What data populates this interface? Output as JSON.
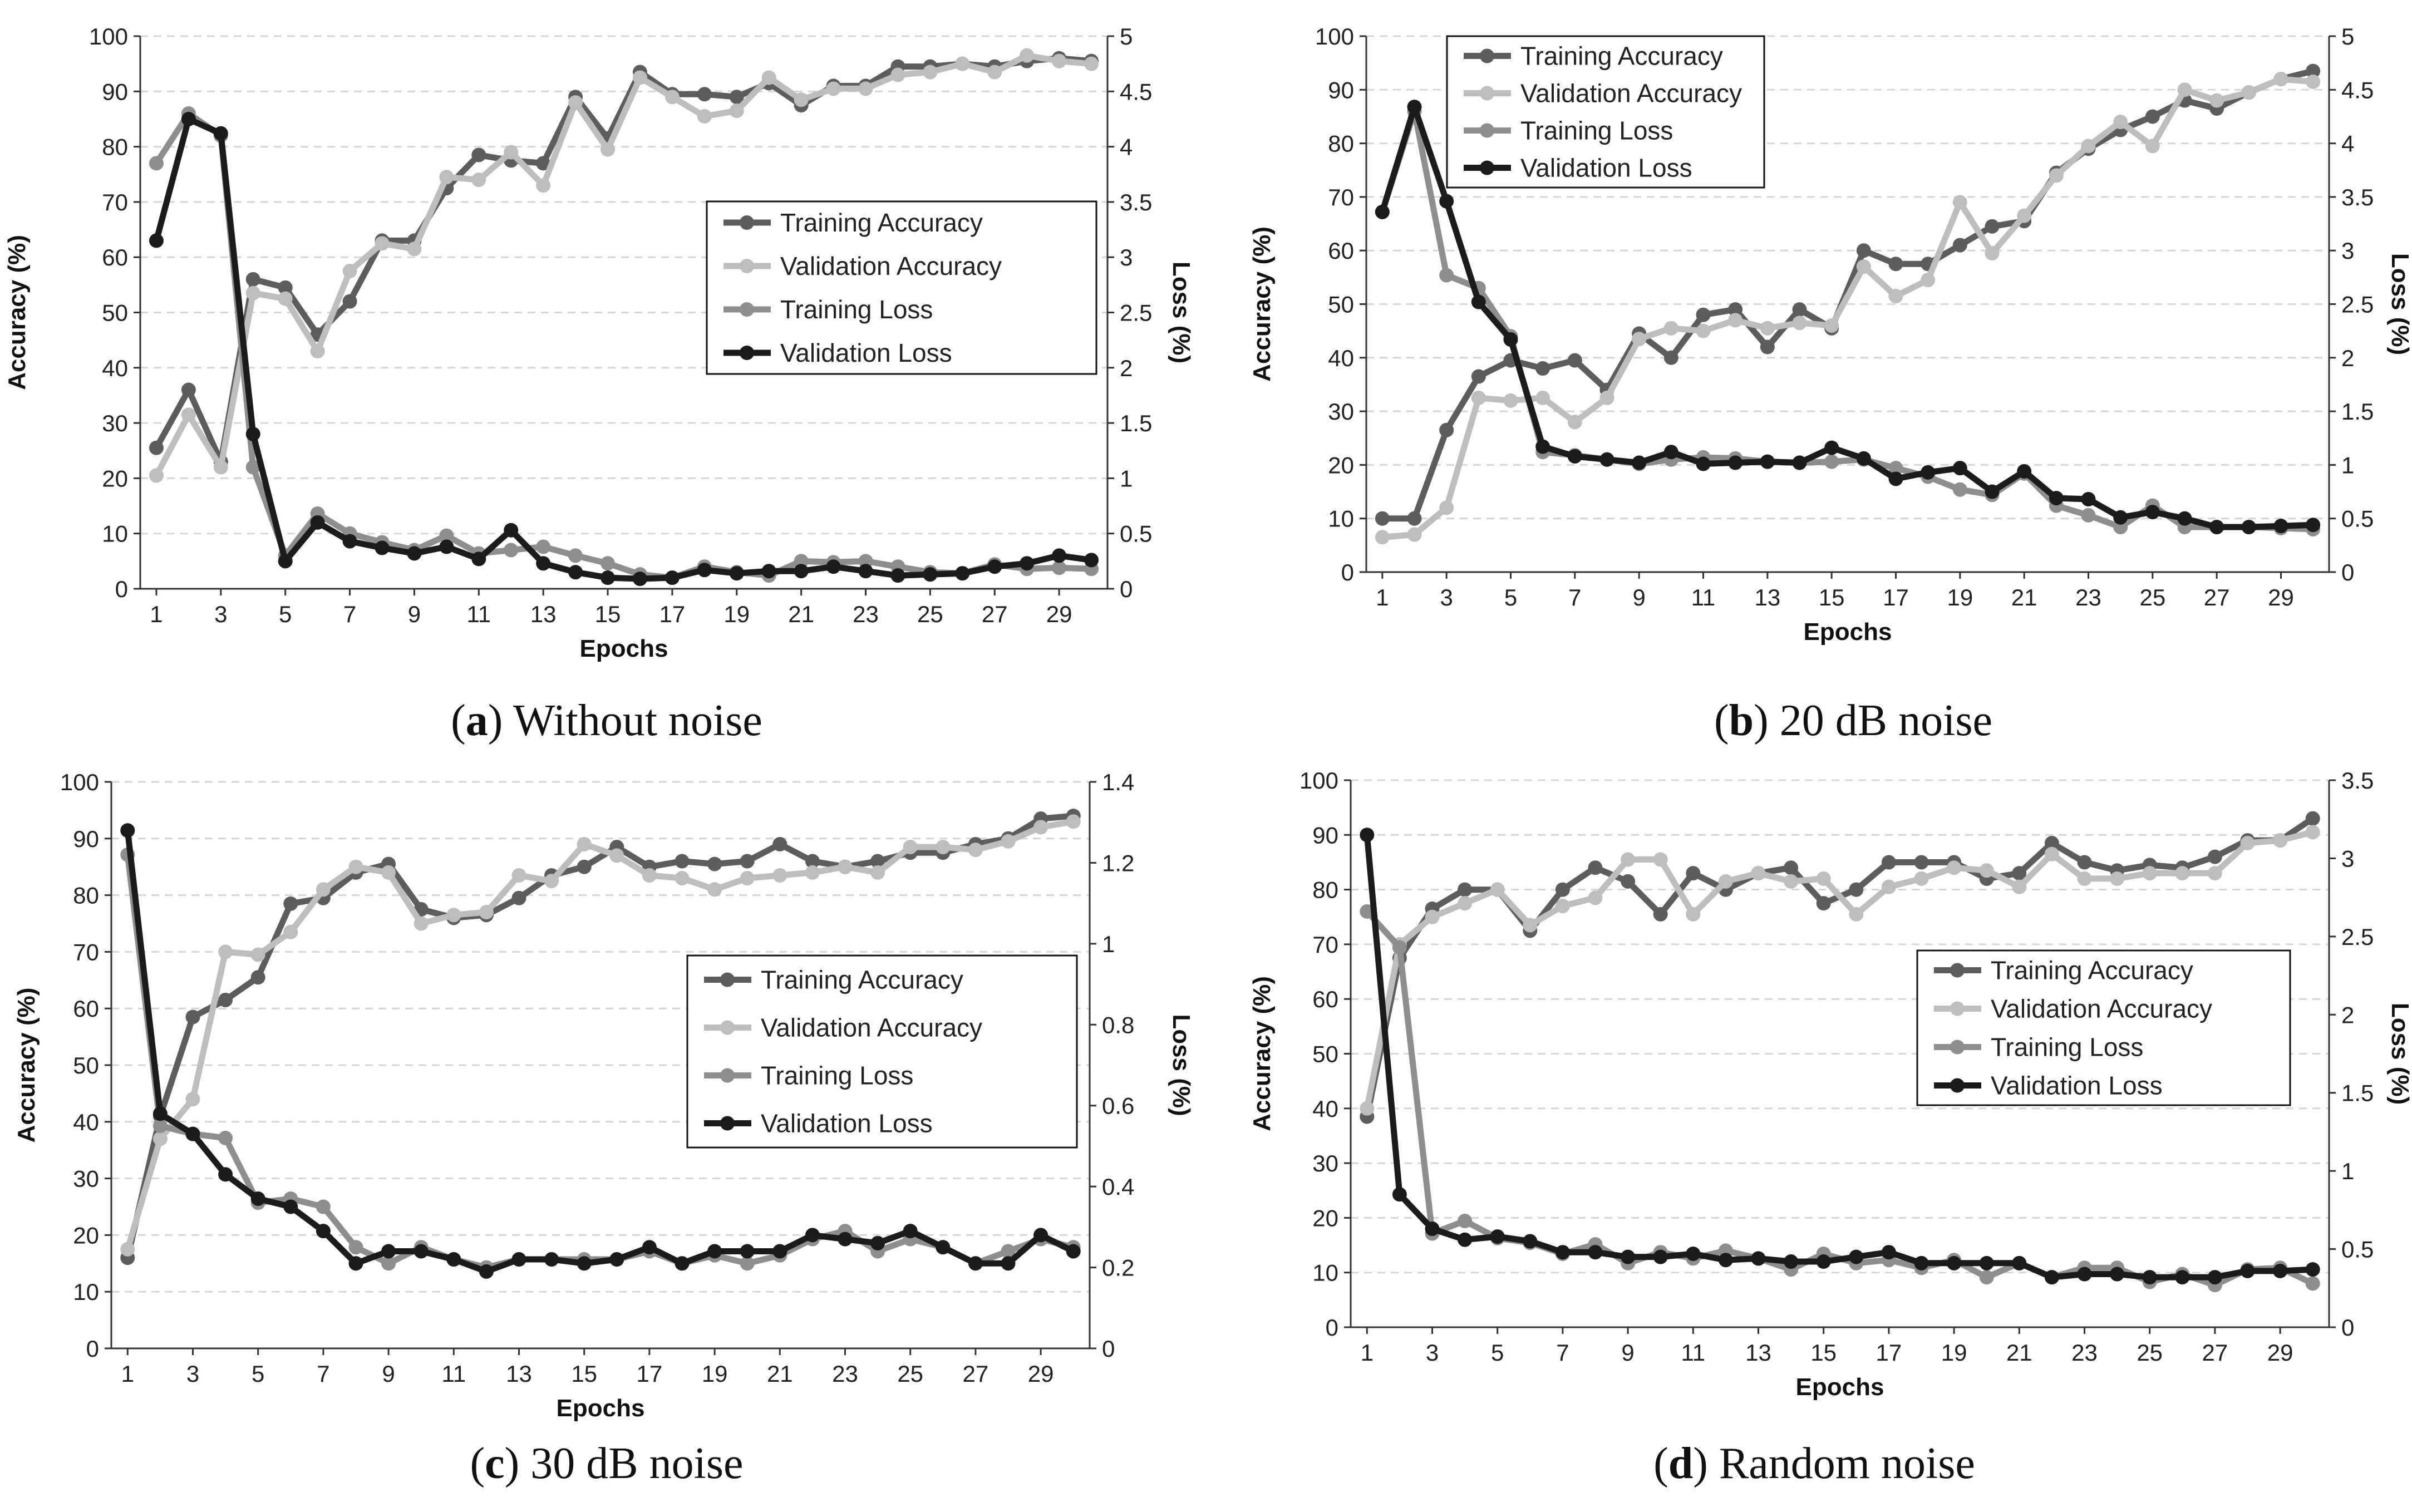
{
  "colors": {
    "training_accuracy": "#5d5d5d",
    "validation_accuracy": "#bdbdbd",
    "training_loss": "#8e8e8e",
    "validation_loss": "#1b1b1b",
    "grid": "#d6d6d6",
    "axis": "#333333"
  },
  "chart_data": [
    {
      "type": "line",
      "panel_letter": "a",
      "caption_rest": " Without noise",
      "xlabel": "Epochs",
      "ylabel_left": "Accuracy (%)",
      "ylabel_right": "Loss (%)",
      "ylim_left": [
        0,
        100
      ],
      "ylim_right": [
        0,
        5
      ],
      "left_ticks": [
        "0",
        "10",
        "20",
        "30",
        "40",
        "50",
        "60",
        "70",
        "80",
        "90",
        "100"
      ],
      "right_ticks": [
        "0",
        "0.5",
        "1",
        "1.5",
        "2",
        "2.5",
        "3",
        "3.5",
        "4",
        "4.5",
        "5"
      ],
      "x_ticks": [
        "1",
        "3",
        "5",
        "7",
        "9",
        "11",
        "13",
        "15",
        "17",
        "19",
        "21",
        "23",
        "25",
        "27",
        "29"
      ],
      "legend_entries": [
        "Training Accuracy",
        "Validation Accuracy",
        "Training Loss",
        "Validation Loss"
      ],
      "x": [
        1,
        2,
        3,
        4,
        5,
        6,
        7,
        8,
        9,
        10,
        11,
        12,
        13,
        14,
        15,
        16,
        17,
        18,
        19,
        20,
        21,
        22,
        23,
        24,
        25,
        26,
        27,
        28,
        29,
        30
      ],
      "series": [
        {
          "name": "Training Accuracy",
          "axis": "left",
          "values": [
            25.5,
            36,
            23,
            56,
            54.5,
            46,
            52,
            63,
            63,
            72.5,
            78.5,
            77.5,
            77,
            89,
            81.5,
            93.5,
            89.5,
            89.5,
            89,
            91.5,
            87.5,
            91,
            91,
            94.5,
            94.5,
            95,
            94.5,
            95.5,
            96,
            95.5
          ]
        },
        {
          "name": "Validation Accuracy",
          "axis": "left",
          "values": [
            20.5,
            31.5,
            22,
            53.5,
            52.5,
            43,
            57.5,
            62.5,
            61.5,
            74.5,
            74,
            79,
            73,
            88,
            79.5,
            92.5,
            89,
            85.5,
            86.5,
            92.5,
            88.5,
            90.5,
            90.5,
            93,
            93.5,
            95,
            93.5,
            96.5,
            95.5,
            95
          ]
        },
        {
          "name": "Training Loss",
          "axis": "right",
          "values": [
            3.85,
            4.3,
            4.1,
            1.1,
            0.3,
            0.68,
            0.5,
            0.42,
            0.35,
            0.48,
            0.32,
            0.35,
            0.38,
            0.3,
            0.23,
            0.13,
            0.1,
            0.2,
            0.15,
            0.12,
            0.25,
            0.24,
            0.25,
            0.2,
            0.15,
            0.14,
            0.22,
            0.18,
            0.19,
            0.18
          ]
        },
        {
          "name": "Validation Loss",
          "axis": "right",
          "values": [
            3.15,
            4.25,
            4.12,
            1.4,
            0.25,
            0.6,
            0.43,
            0.37,
            0.32,
            0.38,
            0.27,
            0.53,
            0.23,
            0.15,
            0.1,
            0.09,
            0.1,
            0.17,
            0.14,
            0.16,
            0.16,
            0.2,
            0.16,
            0.12,
            0.13,
            0.14,
            0.2,
            0.23,
            0.3,
            0.26
          ]
        }
      ]
    },
    {
      "type": "line",
      "panel_letter": "b",
      "caption_rest": " 20 dB noise",
      "xlabel": "Epochs",
      "ylabel_left": "Accuracy (%)",
      "ylabel_right": "Loss (%)",
      "ylim_left": [
        0,
        100
      ],
      "ylim_right": [
        0,
        5
      ],
      "left_ticks": [
        "0",
        "10",
        "20",
        "30",
        "40",
        "50",
        "60",
        "70",
        "80",
        "90",
        "100"
      ],
      "right_ticks": [
        "0",
        "0.5",
        "1",
        "1.5",
        "2",
        "2.5",
        "3",
        "3.5",
        "4",
        "4.5",
        "5"
      ],
      "x_ticks": [
        "1",
        "3",
        "5",
        "7",
        "9",
        "11",
        "13",
        "15",
        "17",
        "19",
        "21",
        "23",
        "25",
        "27",
        "29"
      ],
      "legend_entries": [
        "Training Accuracy",
        "Validation Accuracy",
        "Training Loss",
        "Validation Loss"
      ],
      "x": [
        1,
        2,
        3,
        4,
        5,
        6,
        7,
        8,
        9,
        10,
        11,
        12,
        13,
        14,
        15,
        16,
        17,
        18,
        19,
        20,
        21,
        22,
        23,
        24,
        25,
        26,
        27,
        28,
        29,
        30
      ],
      "series": [
        {
          "name": "Training Accuracy",
          "axis": "left",
          "values": [
            10,
            10,
            26.5,
            36.5,
            39.5,
            38,
            39.5,
            34,
            44.5,
            40,
            48,
            49,
            42,
            49,
            45.5,
            60,
            57.5,
            57.5,
            61,
            64.5,
            65.5,
            74.5,
            79,
            82.5,
            85,
            88,
            86.5,
            89.5,
            92,
            93.5
          ]
        },
        {
          "name": "Validation Accuracy",
          "axis": "left",
          "values": [
            6.5,
            7,
            12,
            32.5,
            32,
            32.5,
            28,
            32.5,
            43.5,
            45.5,
            45,
            47,
            45.5,
            46.5,
            46,
            57,
            51.5,
            54.5,
            69,
            59.5,
            66.5,
            74,
            79.5,
            84,
            79.5,
            90,
            88,
            89.5,
            92,
            91.5
          ]
        },
        {
          "name": "Training Loss",
          "axis": "right",
          "values": [
            3.36,
            4.3,
            2.77,
            2.65,
            2.2,
            1.12,
            1.09,
            1.05,
            1.01,
            1.05,
            1.07,
            1.06,
            1.03,
            1.02,
            1.03,
            1.05,
            0.97,
            0.89,
            0.77,
            0.72,
            0.92,
            0.62,
            0.53,
            0.42,
            0.62,
            0.42,
            0.42,
            0.42,
            0.41,
            0.4
          ]
        },
        {
          "name": "Validation Loss",
          "axis": "right",
          "values": [
            3.36,
            4.34,
            3.46,
            2.52,
            2.17,
            1.17,
            1.08,
            1.05,
            1.02,
            1.12,
            1.01,
            1.02,
            1.03,
            1.02,
            1.16,
            1.06,
            0.87,
            0.93,
            0.97,
            0.75,
            0.94,
            0.69,
            0.68,
            0.51,
            0.56,
            0.5,
            0.42,
            0.42,
            0.43,
            0.44
          ]
        }
      ]
    },
    {
      "type": "line",
      "panel_letter": "c",
      "caption_rest": " 30 dB noise",
      "xlabel": "Epochs",
      "ylabel_left": "Accuracy (%)",
      "ylabel_right": "Loss (%)",
      "ylim_left": [
        0,
        100
      ],
      "ylim_right": [
        0,
        1.4
      ],
      "left_ticks": [
        "0",
        "10",
        "20",
        "30",
        "40",
        "50",
        "60",
        "70",
        "80",
        "90",
        "100"
      ],
      "right_ticks": [
        "0",
        "0.2",
        "0.4",
        "0.6",
        "0.8",
        "1",
        "1.2",
        "1.4"
      ],
      "x_ticks": [
        "1",
        "3",
        "5",
        "7",
        "9",
        "11",
        "13",
        "15",
        "17",
        "19",
        "21",
        "23",
        "25",
        "27",
        "29"
      ],
      "legend_entries": [
        "Training Accuracy",
        "Validation Accuracy",
        "Training Loss",
        "Validation Loss"
      ],
      "x": [
        1,
        2,
        3,
        4,
        5,
        6,
        7,
        8,
        9,
        10,
        11,
        12,
        13,
        14,
        15,
        16,
        17,
        18,
        19,
        20,
        21,
        22,
        23,
        24,
        25,
        26,
        27,
        28,
        29,
        30
      ],
      "series": [
        {
          "name": "Training Accuracy",
          "axis": "left",
          "values": [
            16,
            41,
            58.5,
            61.5,
            65.5,
            78.5,
            79.5,
            84,
            85.5,
            77.5,
            76,
            76.5,
            79.5,
            83.5,
            85,
            88.5,
            85,
            86,
            85.5,
            86,
            89,
            86,
            85,
            86,
            87.5,
            87.5,
            89,
            90,
            93.5,
            94
          ]
        },
        {
          "name": "Validation Accuracy",
          "axis": "left",
          "values": [
            17.5,
            37,
            44,
            70,
            69.5,
            73.5,
            81,
            85,
            84,
            75,
            76.5,
            77,
            83.5,
            82.5,
            89,
            87,
            83.5,
            83,
            81,
            83,
            83.5,
            84,
            85,
            84,
            88.5,
            88.5,
            88,
            89.5,
            92,
            93
          ]
        },
        {
          "name": "Training Loss",
          "axis": "right",
          "values": [
            1.22,
            0.55,
            0.53,
            0.52,
            0.36,
            0.37,
            0.35,
            0.25,
            0.21,
            0.25,
            0.22,
            0.2,
            0.22,
            0.22,
            0.22,
            0.22,
            0.24,
            0.21,
            0.23,
            0.21,
            0.23,
            0.27,
            0.29,
            0.24,
            0.27,
            0.25,
            0.21,
            0.24,
            0.27,
            0.25
          ]
        },
        {
          "name": "Validation Loss",
          "axis": "right",
          "values": [
            1.28,
            0.58,
            0.53,
            0.43,
            0.37,
            0.35,
            0.29,
            0.21,
            0.24,
            0.24,
            0.22,
            0.19,
            0.22,
            0.22,
            0.21,
            0.22,
            0.25,
            0.21,
            0.24,
            0.24,
            0.24,
            0.28,
            0.27,
            0.26,
            0.29,
            0.25,
            0.21,
            0.21,
            0.28,
            0.24
          ]
        }
      ]
    },
    {
      "type": "line",
      "panel_letter": "d",
      "caption_rest": " Random noise",
      "xlabel": "Epochs",
      "ylabel_left": "Accuracy (%)",
      "ylabel_right": "Loss (%)",
      "ylim_left": [
        0,
        100
      ],
      "ylim_right": [
        0,
        3.5
      ],
      "left_ticks": [
        "0",
        "10",
        "20",
        "30",
        "40",
        "50",
        "60",
        "70",
        "80",
        "90",
        "100"
      ],
      "right_ticks": [
        "0",
        "0.5",
        "1",
        "1.5",
        "2",
        "2.5",
        "3",
        "3.5"
      ],
      "x_ticks": [
        "1",
        "3",
        "5",
        "7",
        "9",
        "11",
        "13",
        "15",
        "17",
        "19",
        "21",
        "23",
        "25",
        "27",
        "29"
      ],
      "legend_entries": [
        "Training Accuracy",
        "Validation Accuracy",
        "Training Loss",
        "Validation Loss"
      ],
      "x": [
        1,
        2,
        3,
        4,
        5,
        6,
        7,
        8,
        9,
        10,
        11,
        12,
        13,
        14,
        15,
        16,
        17,
        18,
        19,
        20,
        21,
        22,
        23,
        24,
        25,
        26,
        27,
        28,
        29,
        30
      ],
      "series": [
        {
          "name": "Training Accuracy",
          "axis": "left",
          "values": [
            38.5,
            67.5,
            76.5,
            80,
            80,
            72.5,
            80,
            84,
            81.5,
            75.5,
            83,
            80,
            83,
            84,
            77.5,
            80,
            85,
            85,
            85,
            82,
            83,
            88.5,
            85,
            83.5,
            84.5,
            84,
            86,
            89,
            89,
            93
          ]
        },
        {
          "name": "Validation Accuracy",
          "axis": "left",
          "values": [
            40,
            70,
            75,
            77.5,
            80,
            73.5,
            77,
            78.5,
            85.5,
            85.5,
            75.5,
            81.5,
            83,
            81.5,
            82,
            75.5,
            80.5,
            82,
            84,
            83.5,
            80.5,
            86.5,
            82,
            82,
            83,
            83,
            83,
            88.5,
            89,
            90.5
          ]
        },
        {
          "name": "Training Loss",
          "axis": "right",
          "values": [
            2.66,
            2.43,
            0.6,
            0.68,
            0.57,
            0.54,
            0.47,
            0.53,
            0.41,
            0.48,
            0.44,
            0.49,
            0.44,
            0.37,
            0.47,
            0.41,
            0.43,
            0.38,
            0.43,
            0.32,
            0.41,
            0.32,
            0.38,
            0.38,
            0.29,
            0.34,
            0.27,
            0.37,
            0.38,
            0.28
          ]
        },
        {
          "name": "Validation Loss",
          "axis": "right",
          "values": [
            3.15,
            0.85,
            0.63,
            0.56,
            0.58,
            0.55,
            0.48,
            0.48,
            0.45,
            0.45,
            0.47,
            0.43,
            0.44,
            0.42,
            0.42,
            0.45,
            0.48,
            0.41,
            0.41,
            0.41,
            0.41,
            0.32,
            0.34,
            0.34,
            0.32,
            0.32,
            0.32,
            0.36,
            0.36,
            0.37
          ]
        }
      ]
    }
  ]
}
